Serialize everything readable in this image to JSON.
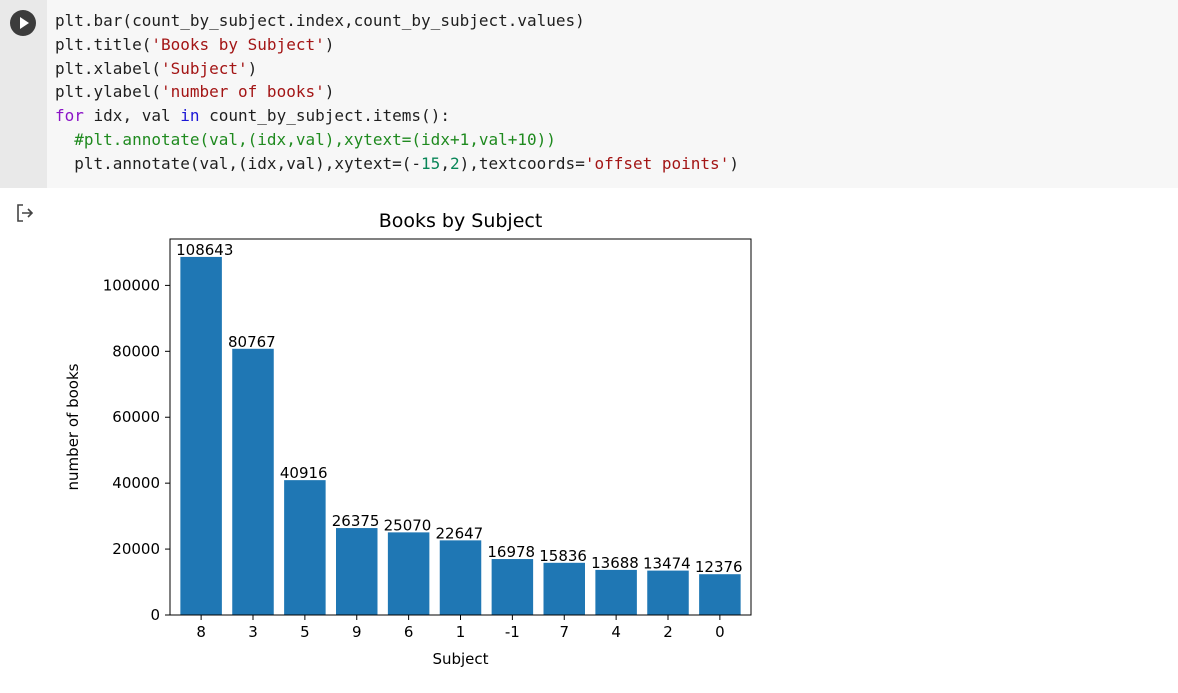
{
  "code_cell": {
    "lines": [
      [
        {
          "t": "plt.bar(count_by_subject.index,count_by_subject.values)"
        }
      ],
      [
        {
          "t": "plt.title("
        },
        {
          "t": "'Books by Subject'",
          "c": "str"
        },
        {
          "t": ")"
        }
      ],
      [
        {
          "t": "plt.xlabel("
        },
        {
          "t": "'Subject'",
          "c": "str"
        },
        {
          "t": ")"
        }
      ],
      [
        {
          "t": "plt.ylabel("
        },
        {
          "t": "'number of books'",
          "c": "str"
        },
        {
          "t": ")"
        }
      ],
      [
        {
          "t": "for",
          "c": "kw"
        },
        {
          "t": " idx, val "
        },
        {
          "t": "in",
          "c": "kw2"
        },
        {
          "t": " count_by_subject.items():"
        }
      ],
      [
        {
          "t": "  "
        },
        {
          "t": "#plt.annotate(val,(idx,val),xytext=(idx+1,val+10))",
          "c": "cmt"
        }
      ],
      [
        {
          "t": "  plt.annotate(val,(idx,val),xytext=(-"
        },
        {
          "t": "15",
          "c": "num"
        },
        {
          "t": ","
        },
        {
          "t": "2",
          "c": "num"
        },
        {
          "t": "),textcoords="
        },
        {
          "t": "'offset points'",
          "c": "str"
        },
        {
          "t": ")"
        }
      ]
    ]
  },
  "icons": {
    "run": "play-icon",
    "output": "output-arrow-icon"
  },
  "colors": {
    "bar": "#1f77b4",
    "cell_bg": "#f7f7f7",
    "gutter_bg": "#e9e9e9"
  },
  "chart_data": {
    "type": "bar",
    "title": "Books by Subject",
    "xlabel": "Subject",
    "ylabel": "number of books",
    "categories": [
      "8",
      "3",
      "5",
      "9",
      "6",
      "1",
      "-1",
      "7",
      "4",
      "2",
      "0"
    ],
    "values": [
      108643,
      80767,
      40916,
      26375,
      25070,
      22647,
      16978,
      15836,
      13688,
      13474,
      12376
    ],
    "data_labels": [
      "108643",
      "80767",
      "40916",
      "26375",
      "25070",
      "22647",
      "16978",
      "15836",
      "13688",
      "13474",
      "12376"
    ],
    "yticks": [
      0,
      20000,
      40000,
      60000,
      80000,
      100000
    ],
    "ytick_labels": [
      "0",
      "20000",
      "40000",
      "60000",
      "80000",
      "100000"
    ],
    "ylim": [
      0,
      114075
    ],
    "grid": false,
    "legend": false
  }
}
